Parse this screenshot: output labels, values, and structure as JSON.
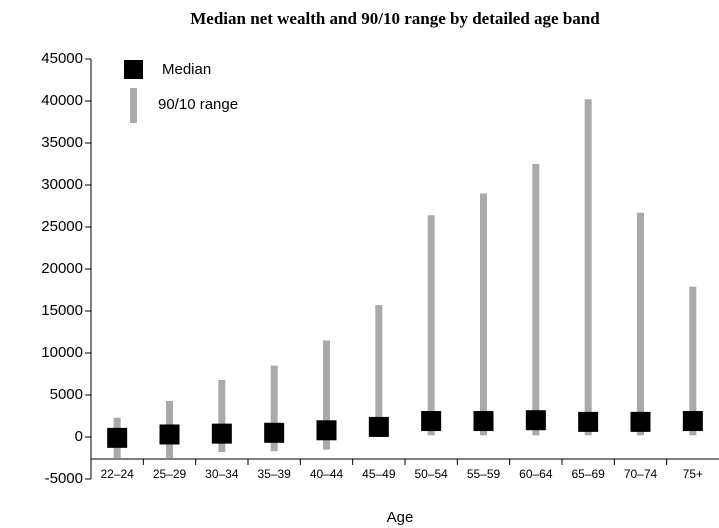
{
  "chart_data": {
    "type": "range",
    "title": "Median net wealth and 90/10 range by detailed age band",
    "x_label": "Age",
    "categories": [
      "22–24",
      "25–29",
      "30–34",
      "35–39",
      "40–44",
      "45–49",
      "50–54",
      "55–59",
      "60–64",
      "65–69",
      "70–74",
      "75+"
    ],
    "series": [
      {
        "name": "Median",
        "color": "#000000",
        "values": [
          -100,
          300,
          400,
          500,
          800,
          1200,
          1900,
          1900,
          2000,
          1800,
          1800,
          1900
        ]
      },
      {
        "name": "90/10 range",
        "color": "#aaaaaa",
        "low": [
          -2500,
          -2500,
          -1800,
          -1700,
          -1500,
          0,
          200,
          200,
          200,
          200,
          200,
          200
        ],
        "high": [
          2300,
          4300,
          6800,
          8500,
          11500,
          15700,
          26400,
          29000,
          32500,
          40200,
          26700,
          17900
        ]
      }
    ],
    "ylim": [
      -5000,
      45000
    ],
    "yticks": [
      -5000,
      0,
      5000,
      10000,
      15000,
      20000,
      25000,
      30000,
      35000,
      40000,
      45000
    ]
  }
}
